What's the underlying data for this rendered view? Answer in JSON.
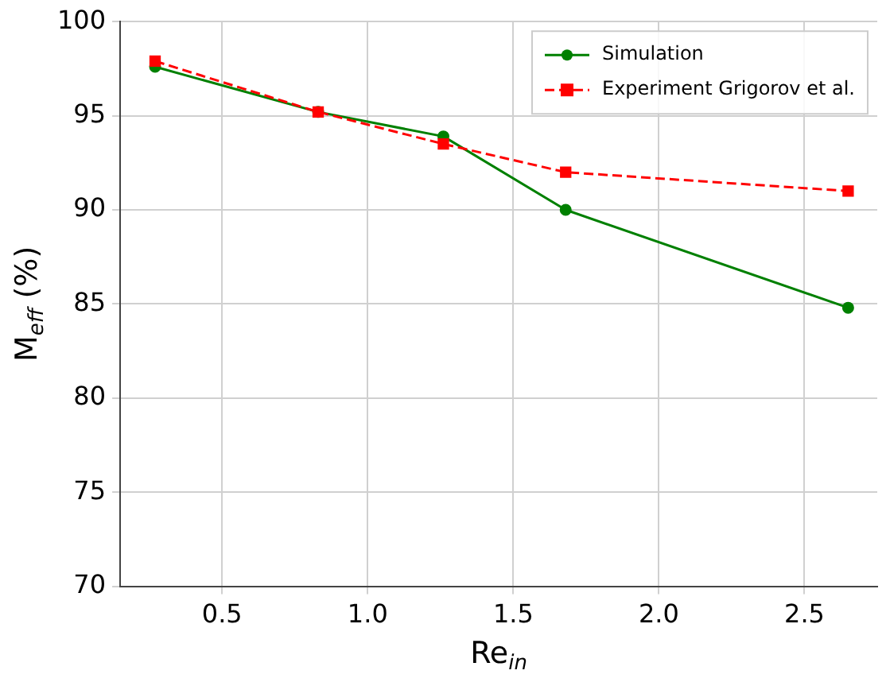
{
  "chart_data": {
    "type": "line",
    "xlabel": "Re$_{in}$",
    "ylabel": "M$_{eff}$ (%)",
    "xlim": [
      0.15,
      2.75
    ],
    "xticks": [
      {
        "value": 0.5,
        "label": "0.5"
      },
      {
        "value": 1,
        "label": "1.0"
      },
      {
        "value": 1.5,
        "label": "1.5"
      },
      {
        "value": 2,
        "label": "2.0"
      },
      {
        "value": 2.5,
        "label": "2.5"
      }
    ],
    "ylim": [
      70,
      100
    ],
    "yticks": [
      70,
      75,
      80,
      85,
      90,
      95,
      100
    ],
    "grid": true,
    "legend": "top right",
    "series": [
      {
        "name": "Simulation",
        "color": "#008000",
        "marker": "circle",
        "line_style": "solid",
        "x": [
          0.27,
          0.83,
          1.26,
          1.68,
          2.65
        ],
        "values": [
          97.6,
          95.2,
          93.9,
          90.0,
          84.8
        ]
      },
      {
        "name": "Experiment Grigorov et al.",
        "color": "#ff0000",
        "marker": "square",
        "line_style": "dashed",
        "x": [
          0.27,
          0.83,
          1.26,
          1.68,
          2.65
        ],
        "values": [
          97.9,
          95.2,
          93.5,
          92.0,
          91.0
        ]
      }
    ]
  }
}
